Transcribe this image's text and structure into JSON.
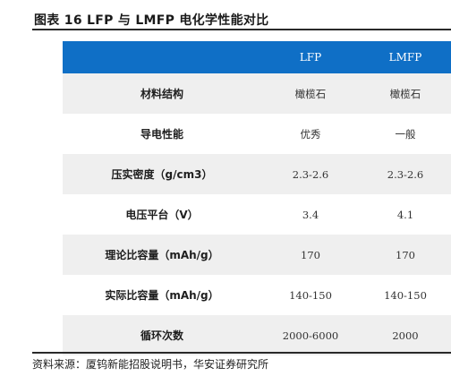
{
  "title": "图表 16 LFP 与 LMFP 电化学性能对比",
  "table": {
    "headers": [
      "",
      "LFP",
      "LMFP"
    ],
    "rows": [
      {
        "label": "材料结构",
        "lfp": "橄榄石",
        "lmfp": "橄榄石"
      },
      {
        "label": "导电性能",
        "lfp": "优秀",
        "lmfp": "一般"
      },
      {
        "label": "压实密度（g/cm3）",
        "lfp": "2.3-2.6",
        "lmfp": "2.3-2.6"
      },
      {
        "label": "电压平台（V）",
        "lfp": "3.4",
        "lmfp": "4.1"
      },
      {
        "label": "理论比容量（mAh/g）",
        "lfp": "170",
        "lmfp": "170"
      },
      {
        "label": "实际比容量（mAh/g）",
        "lfp": "140-150",
        "lmfp": "140-150"
      },
      {
        "label": "循环次数",
        "lfp": "2000-6000",
        "lmfp": "2000"
      }
    ]
  },
  "source": "资料来源：厦钨新能招股说明书，华安证券研究所",
  "colors": {
    "header_bg": "#0f6fc6",
    "stripe": "#efefef",
    "rule": "#2a2a2a"
  }
}
